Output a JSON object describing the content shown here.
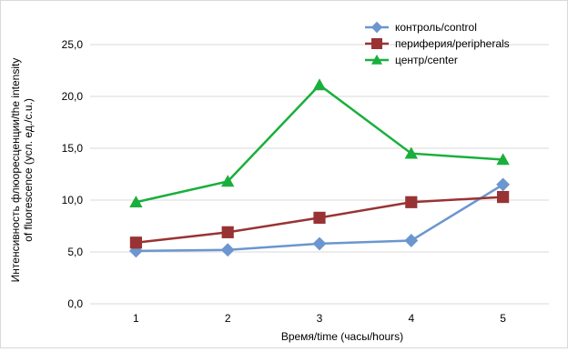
{
  "chart_data": {
    "type": "line",
    "title": "",
    "xlabel": "Время/time (часы/hours)",
    "ylabel_lines": [
      "Интенсивность флюоресценции/the intensity",
      "of fluorescence (усл. ед./c.u.)"
    ],
    "categories": [
      "1",
      "2",
      "3",
      "4",
      "5"
    ],
    "ylim": [
      0,
      25
    ],
    "yticks": [
      0,
      5,
      10,
      15,
      20,
      25
    ],
    "ytick_labels": [
      "0,0",
      "5,0",
      "10,0",
      "15,0",
      "20,0",
      "25,0"
    ],
    "grid": true,
    "legend_position": "top-right",
    "series": [
      {
        "name": "контроль/control",
        "color": "#6b96cf",
        "marker": "diamond",
        "values": [
          5.1,
          5.2,
          5.8,
          6.1,
          11.5
        ]
      },
      {
        "name": "периферия/peripherals",
        "color": "#993333",
        "marker": "square",
        "values": [
          5.9,
          6.9,
          8.3,
          9.8,
          10.3
        ]
      },
      {
        "name": "центр/center",
        "color": "#1aaf3c",
        "marker": "triangle",
        "values": [
          9.8,
          11.8,
          21.1,
          14.5,
          13.9
        ]
      }
    ]
  }
}
